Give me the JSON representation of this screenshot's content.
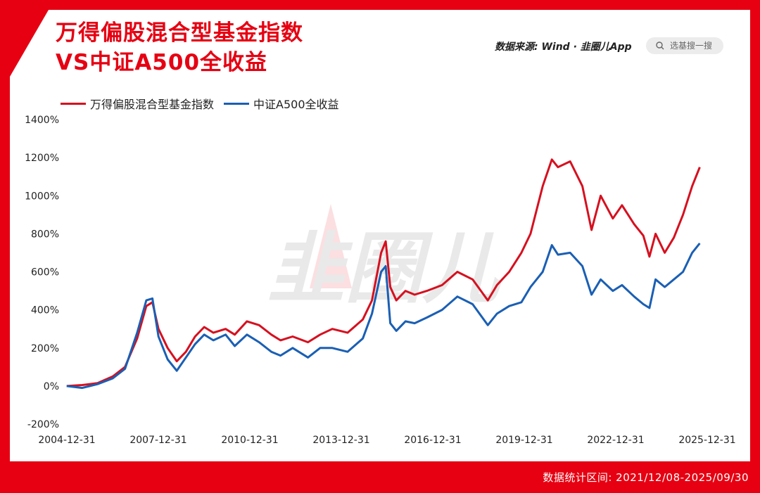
{
  "header": {
    "title_line1": "万得偏股混合型基金指数",
    "title_line2": "VS中证A500全收益",
    "source": "数据来源: Wind · 韭圈儿App",
    "search_placeholder": "选基搜一搜"
  },
  "footer": {
    "date_range": "数据统计区间: 2021/12/08-2025/09/30"
  },
  "watermark": "韭圈儿",
  "colors": {
    "brand_red": "#e60012",
    "series_red": "#d6101f",
    "series_blue": "#1a5fb4"
  },
  "icons": {
    "search": "search-icon"
  },
  "chart_data": {
    "type": "line",
    "x_tick_labels": [
      "2004-12-31",
      "2007-12-31",
      "2010-12-31",
      "2013-12-31",
      "2016-12-31",
      "2019-12-31",
      "2022-12-31",
      "2025-12-31"
    ],
    "y_tick_labels": [
      "1400%",
      "1200%",
      "1000%",
      "800%",
      "600%",
      "400%",
      "200%",
      "0%",
      "-200%"
    ],
    "ylim": [
      -200,
      1400
    ],
    "xlim": [
      2004.995,
      2025.995
    ],
    "series": [
      {
        "name": "万得偏股混合型基金指数",
        "color": "#d6101f",
        "x": [
          2004.99,
          2005.5,
          2006.0,
          2006.5,
          2006.9,
          2007.3,
          2007.6,
          2007.8,
          2008.0,
          2008.3,
          2008.6,
          2008.9,
          2009.2,
          2009.5,
          2009.8,
          2010.2,
          2010.5,
          2010.9,
          2011.3,
          2011.7,
          2012.0,
          2012.4,
          2012.9,
          2013.3,
          2013.7,
          2014.2,
          2014.7,
          2015.0,
          2015.3,
          2015.45,
          2015.6,
          2015.8,
          2016.1,
          2016.4,
          2016.8,
          2017.3,
          2017.8,
          2018.3,
          2018.8,
          2019.1,
          2019.5,
          2019.9,
          2020.2,
          2020.6,
          2020.9,
          2021.1,
          2021.5,
          2021.9,
          2022.2,
          2022.5,
          2022.9,
          2023.2,
          2023.6,
          2023.9,
          2024.1,
          2024.3,
          2024.6,
          2024.9,
          2025.2,
          2025.5,
          2025.75
        ],
        "y": [
          0,
          5,
          15,
          50,
          100,
          250,
          420,
          440,
          300,
          200,
          130,
          180,
          260,
          310,
          280,
          300,
          270,
          340,
          320,
          270,
          240,
          260,
          230,
          270,
          300,
          280,
          350,
          450,
          700,
          760,
          520,
          450,
          500,
          480,
          500,
          530,
          600,
          560,
          450,
          530,
          600,
          700,
          800,
          1050,
          1190,
          1150,
          1180,
          1050,
          820,
          1000,
          880,
          950,
          850,
          790,
          680,
          800,
          700,
          780,
          900,
          1050,
          1150
        ]
      },
      {
        "name": "中证A500全收益",
        "color": "#1a5fb4",
        "x": [
          2004.99,
          2005.5,
          2006.0,
          2006.5,
          2006.9,
          2007.3,
          2007.6,
          2007.8,
          2008.0,
          2008.3,
          2008.6,
          2008.9,
          2009.2,
          2009.5,
          2009.8,
          2010.2,
          2010.5,
          2010.9,
          2011.3,
          2011.7,
          2012.0,
          2012.4,
          2012.9,
          2013.3,
          2013.7,
          2014.2,
          2014.7,
          2015.0,
          2015.3,
          2015.45,
          2015.6,
          2015.8,
          2016.1,
          2016.4,
          2016.8,
          2017.3,
          2017.8,
          2018.3,
          2018.8,
          2019.1,
          2019.5,
          2019.9,
          2020.2,
          2020.6,
          2020.9,
          2021.1,
          2021.5,
          2021.9,
          2022.2,
          2022.5,
          2022.9,
          2023.2,
          2023.6,
          2023.9,
          2024.1,
          2024.3,
          2024.6,
          2024.9,
          2025.2,
          2025.5,
          2025.75
        ],
        "y": [
          0,
          -10,
          10,
          40,
          90,
          280,
          450,
          460,
          260,
          140,
          80,
          150,
          220,
          270,
          240,
          270,
          210,
          270,
          230,
          180,
          160,
          200,
          150,
          200,
          200,
          180,
          250,
          380,
          600,
          630,
          330,
          290,
          340,
          330,
          360,
          400,
          470,
          430,
          320,
          380,
          420,
          440,
          520,
          600,
          740,
          690,
          700,
          630,
          480,
          560,
          500,
          530,
          470,
          430,
          410,
          560,
          520,
          560,
          600,
          700,
          750
        ]
      }
    ]
  }
}
